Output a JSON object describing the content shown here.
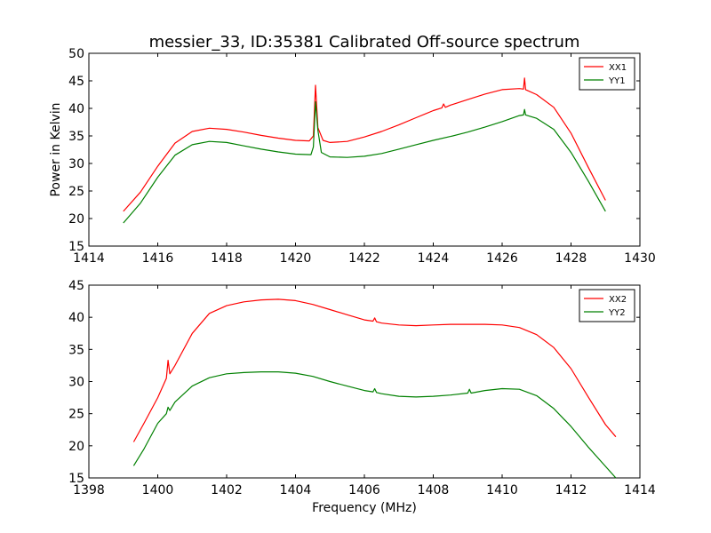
{
  "figure": {
    "title": "messier_33, ID:35381 Calibrated Off-source spectrum",
    "xlabel": "Frequency (MHz)",
    "ylabel": "Power in Kelvin"
  },
  "chart_data": [
    {
      "type": "line",
      "title": "messier_33, ID:35381 Calibrated Off-source spectrum",
      "xlabel": "",
      "ylabel": "Power in Kelvin",
      "xlim": [
        1414,
        1430
      ],
      "ylim": [
        15,
        50
      ],
      "xticks": [
        1414,
        1416,
        1418,
        1420,
        1422,
        1424,
        1426,
        1428,
        1430
      ],
      "yticks": [
        15,
        20,
        25,
        30,
        35,
        40,
        45,
        50
      ],
      "grid": false,
      "legend": "top-right",
      "series": [
        {
          "name": "XX1",
          "color": "#ff0000",
          "points": [
            [
              1415.0,
              21.3
            ],
            [
              1415.5,
              24.8
            ],
            [
              1416.0,
              29.5
            ],
            [
              1416.5,
              33.7
            ],
            [
              1417.0,
              35.8
            ],
            [
              1417.5,
              36.4
            ],
            [
              1418.0,
              36.2
            ],
            [
              1418.5,
              35.7
            ],
            [
              1419.0,
              35.1
            ],
            [
              1419.5,
              34.6
            ],
            [
              1420.0,
              34.2
            ],
            [
              1420.4,
              34.1
            ],
            [
              1420.52,
              35.0
            ],
            [
              1420.58,
              44.2
            ],
            [
              1420.65,
              36.5
            ],
            [
              1420.8,
              34.2
            ],
            [
              1421.0,
              33.8
            ],
            [
              1421.5,
              34.0
            ],
            [
              1422.0,
              34.8
            ],
            [
              1422.5,
              35.8
            ],
            [
              1423.0,
              37.0
            ],
            [
              1423.5,
              38.3
            ],
            [
              1424.0,
              39.6
            ],
            [
              1424.25,
              40.1
            ],
            [
              1424.3,
              40.8
            ],
            [
              1424.35,
              40.2
            ],
            [
              1424.5,
              40.6
            ],
            [
              1425.0,
              41.6
            ],
            [
              1425.5,
              42.6
            ],
            [
              1426.0,
              43.4
            ],
            [
              1426.5,
              43.6
            ],
            [
              1426.62,
              43.5
            ],
            [
              1426.65,
              45.5
            ],
            [
              1426.68,
              43.4
            ],
            [
              1427.0,
              42.5
            ],
            [
              1427.5,
              40.2
            ],
            [
              1428.0,
              35.5
            ],
            [
              1428.5,
              29.3
            ],
            [
              1429.0,
              23.3
            ]
          ]
        },
        {
          "name": "YY1",
          "color": "#008000",
          "points": [
            [
              1415.0,
              19.2
            ],
            [
              1415.5,
              22.8
            ],
            [
              1416.0,
              27.5
            ],
            [
              1416.5,
              31.5
            ],
            [
              1417.0,
              33.4
            ],
            [
              1417.5,
              34.0
            ],
            [
              1418.0,
              33.8
            ],
            [
              1418.5,
              33.2
            ],
            [
              1419.0,
              32.6
            ],
            [
              1419.5,
              32.1
            ],
            [
              1420.0,
              31.7
            ],
            [
              1420.45,
              31.6
            ],
            [
              1420.52,
              33.0
            ],
            [
              1420.58,
              41.2
            ],
            [
              1420.65,
              36.0
            ],
            [
              1420.75,
              32.0
            ],
            [
              1421.0,
              31.2
            ],
            [
              1421.5,
              31.1
            ],
            [
              1422.0,
              31.3
            ],
            [
              1422.5,
              31.8
            ],
            [
              1423.0,
              32.6
            ],
            [
              1423.5,
              33.4
            ],
            [
              1424.0,
              34.2
            ],
            [
              1424.5,
              34.9
            ],
            [
              1425.0,
              35.7
            ],
            [
              1425.5,
              36.6
            ],
            [
              1426.0,
              37.6
            ],
            [
              1426.5,
              38.7
            ],
            [
              1426.62,
              38.8
            ],
            [
              1426.65,
              39.8
            ],
            [
              1426.68,
              38.8
            ],
            [
              1427.0,
              38.2
            ],
            [
              1427.5,
              36.2
            ],
            [
              1428.0,
              32.0
            ],
            [
              1428.5,
              26.8
            ],
            [
              1429.0,
              21.3
            ]
          ]
        }
      ]
    },
    {
      "type": "line",
      "title": "",
      "xlabel": "Frequency (MHz)",
      "ylabel": "",
      "xlim": [
        1398,
        1414
      ],
      "ylim": [
        15,
        45
      ],
      "xticks": [
        1398,
        1400,
        1402,
        1404,
        1406,
        1408,
        1410,
        1412,
        1414
      ],
      "yticks": [
        15,
        20,
        25,
        30,
        35,
        40,
        45
      ],
      "grid": false,
      "legend": "top-right",
      "series": [
        {
          "name": "XX2",
          "color": "#ff0000",
          "points": [
            [
              1399.3,
              20.6
            ],
            [
              1399.6,
              23.5
            ],
            [
              1400.0,
              27.5
            ],
            [
              1400.25,
              30.5
            ],
            [
              1400.3,
              33.3
            ],
            [
              1400.35,
              31.2
            ],
            [
              1400.5,
              32.5
            ],
            [
              1401.0,
              37.5
            ],
            [
              1401.5,
              40.6
            ],
            [
              1402.0,
              41.8
            ],
            [
              1402.5,
              42.4
            ],
            [
              1403.0,
              42.7
            ],
            [
              1403.5,
              42.8
            ],
            [
              1404.0,
              42.6
            ],
            [
              1404.5,
              42.0
            ],
            [
              1405.0,
              41.2
            ],
            [
              1405.5,
              40.4
            ],
            [
              1406.0,
              39.6
            ],
            [
              1406.25,
              39.4
            ],
            [
              1406.3,
              39.9
            ],
            [
              1406.35,
              39.3
            ],
            [
              1406.5,
              39.1
            ],
            [
              1407.0,
              38.8
            ],
            [
              1407.5,
              38.7
            ],
            [
              1408.0,
              38.8
            ],
            [
              1408.5,
              38.9
            ],
            [
              1409.0,
              38.9
            ],
            [
              1409.5,
              38.9
            ],
            [
              1410.0,
              38.8
            ],
            [
              1410.5,
              38.4
            ],
            [
              1411.0,
              37.3
            ],
            [
              1411.5,
              35.3
            ],
            [
              1412.0,
              32.0
            ],
            [
              1412.5,
              27.6
            ],
            [
              1413.0,
              23.3
            ],
            [
              1413.3,
              21.4
            ]
          ]
        },
        {
          "name": "YY2",
          "color": "#008000",
          "points": [
            [
              1399.3,
              16.9
            ],
            [
              1399.6,
              19.5
            ],
            [
              1400.0,
              23.5
            ],
            [
              1400.25,
              25.0
            ],
            [
              1400.3,
              26.0
            ],
            [
              1400.35,
              25.5
            ],
            [
              1400.5,
              26.8
            ],
            [
              1401.0,
              29.3
            ],
            [
              1401.5,
              30.6
            ],
            [
              1402.0,
              31.2
            ],
            [
              1402.5,
              31.4
            ],
            [
              1403.0,
              31.5
            ],
            [
              1403.5,
              31.5
            ],
            [
              1404.0,
              31.3
            ],
            [
              1404.5,
              30.8
            ],
            [
              1405.0,
              30.0
            ],
            [
              1405.5,
              29.3
            ],
            [
              1406.0,
              28.6
            ],
            [
              1406.25,
              28.4
            ],
            [
              1406.3,
              28.9
            ],
            [
              1406.35,
              28.3
            ],
            [
              1406.5,
              28.1
            ],
            [
              1407.0,
              27.7
            ],
            [
              1407.5,
              27.6
            ],
            [
              1408.0,
              27.7
            ],
            [
              1408.5,
              27.9
            ],
            [
              1409.0,
              28.2
            ],
            [
              1409.05,
              28.8
            ],
            [
              1409.1,
              28.2
            ],
            [
              1409.5,
              28.6
            ],
            [
              1410.0,
              28.9
            ],
            [
              1410.5,
              28.8
            ],
            [
              1411.0,
              27.8
            ],
            [
              1411.5,
              25.8
            ],
            [
              1412.0,
              23.0
            ],
            [
              1412.5,
              19.8
            ],
            [
              1413.0,
              16.8
            ],
            [
              1413.3,
              15.0
            ]
          ]
        }
      ]
    }
  ]
}
